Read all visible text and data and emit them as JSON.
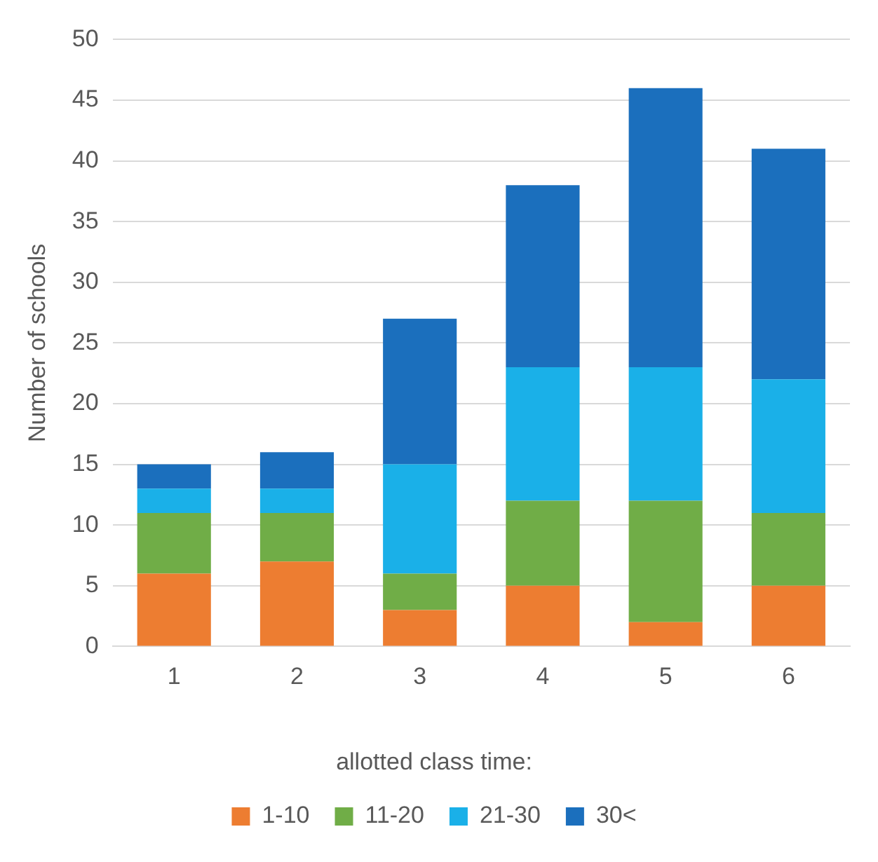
{
  "chart_data": {
    "type": "bar",
    "stacked": true,
    "ylabel": "Number of schools",
    "legend_title": "allotted class time:",
    "categories": [
      "1",
      "2",
      "3",
      "4",
      "5",
      "6"
    ],
    "series": [
      {
        "name": "1-10",
        "color": "#ed7d31",
        "values": [
          6,
          7,
          3,
          5,
          2,
          5
        ]
      },
      {
        "name": "11-20",
        "color": "#70ad47",
        "values": [
          5,
          4,
          3,
          7,
          10,
          6
        ]
      },
      {
        "name": "21-30",
        "color": "#1ab0e8",
        "values": [
          2,
          2,
          9,
          11,
          11,
          11
        ]
      },
      {
        "name": "30<",
        "color": "#1b6fbd",
        "values": [
          2,
          3,
          12,
          15,
          23,
          19
        ]
      }
    ],
    "ylim": [
      0,
      50
    ],
    "yticks": [
      0,
      5,
      10,
      15,
      20,
      25,
      30,
      35,
      40,
      45,
      50
    ],
    "grid": "y",
    "legend": "bottom"
  }
}
